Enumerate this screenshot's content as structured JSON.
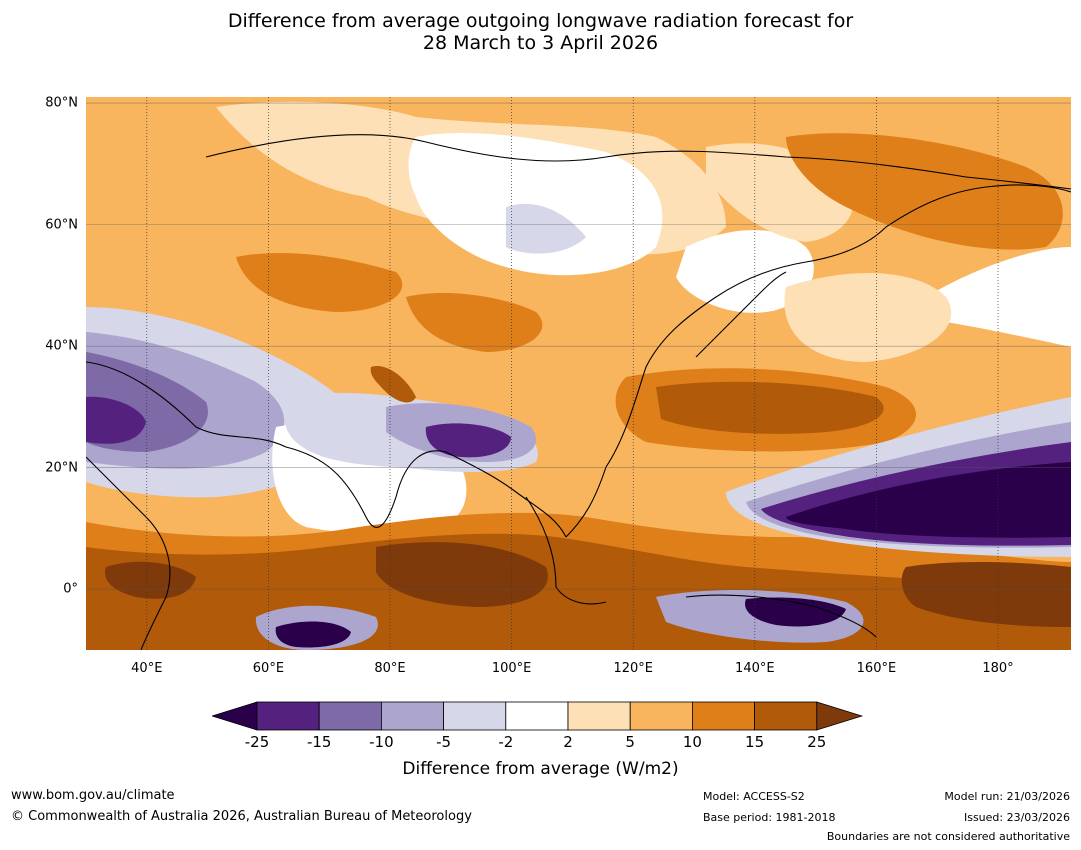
{
  "title": {
    "line1": "Difference from average outgoing longwave radiation forecast for",
    "line2": "28 March to 3 April 2026"
  },
  "map": {
    "lat_labels": [
      "80°N",
      "60°N",
      "40°N",
      "20°N",
      "0°"
    ],
    "lat_values": [
      80,
      60,
      40,
      20,
      0
    ],
    "lon_labels": [
      "40°E",
      "60°E",
      "80°E",
      "100°E",
      "120°E",
      "140°E",
      "160°E",
      "180°"
    ],
    "lon_values": [
      40,
      60,
      80,
      100,
      120,
      140,
      160,
      180
    ],
    "lon_range": [
      30,
      192
    ],
    "lat_range": [
      -10,
      81
    ]
  },
  "colorbar": {
    "title": "Difference from average (W/m2)",
    "ticks": [
      "-25",
      "-15",
      "-10",
      "-5",
      "-2",
      "2",
      "5",
      "10",
      "15",
      "25"
    ],
    "colors": [
      "#2a004a",
      "#55217f",
      "#7d6aa6",
      "#aca6ce",
      "#d7d7ea",
      "#ffffff",
      "#fde0b5",
      "#f9b45e",
      "#de7f1a",
      "#b05a0a",
      "#7f3a0c"
    ]
  },
  "footer": {
    "url": "www.bom.gov.au/climate",
    "copyright": "© Commonwealth of Australia 2026, Australian Bureau of Meteorology",
    "model": "Model: ACCESS-S2",
    "base_period": "Base period: 1981-2018",
    "model_run": "Model run: 21/03/2026",
    "issued": "Issued: 23/03/2026",
    "disclaimer": "Boundaries are not considered authoritative"
  }
}
